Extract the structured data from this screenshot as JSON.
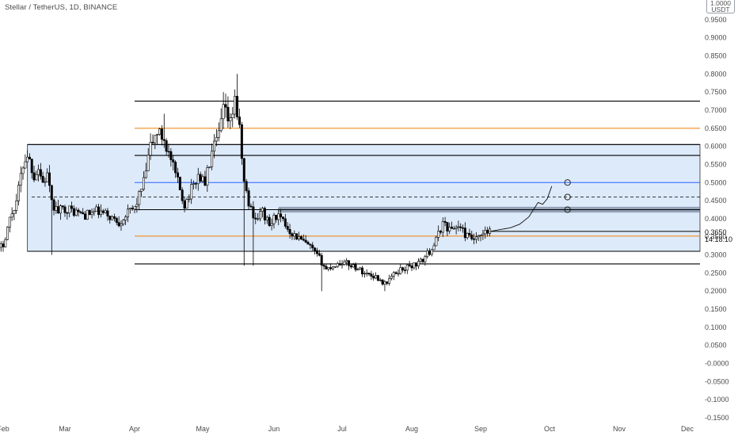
{
  "header": {
    "title": "Stellar / TetherUS, 1D, BINANCE",
    "currency_top": "1.0000",
    "currency_unit": "USDT"
  },
  "price_tag": {
    "price": "0.3650",
    "countdown": "14:18:10"
  },
  "chart_data": {
    "type": "candlestick",
    "title": "Stellar / TetherUS, 1D, BINANCE",
    "y_axis": {
      "ylim": [
        -0.16,
        1.0
      ],
      "tick_labels": [
        "1.0000",
        "0.9500",
        "0.9000",
        "0.8500",
        "0.8000",
        "0.7500",
        "0.7000",
        "0.6500",
        "0.6000",
        "0.5500",
        "0.5000",
        "0.4500",
        "0.4000",
        "0.3500",
        "0.3000",
        "0.2500",
        "0.2000",
        "0.1500",
        "0.1000",
        "0.0500",
        "-0.0000",
        "-0.0500",
        "-0.1000",
        "-0.1500"
      ],
      "tick_values": [
        1.0,
        0.95,
        0.9,
        0.85,
        0.8,
        0.75,
        0.7,
        0.65,
        0.6,
        0.55,
        0.5,
        0.45,
        0.4,
        0.35,
        0.3,
        0.25,
        0.2,
        0.15,
        0.1,
        0.05,
        0.0,
        -0.05,
        -0.1,
        -0.15
      ]
    },
    "x_axis": {
      "tick_labels": [
        "Feb",
        "Mar",
        "Apr",
        "May",
        "Jun",
        "Jul",
        "Aug",
        "Sep",
        "Oct",
        "Nov",
        "Dec"
      ],
      "tick_dates": [
        "2021-02-01",
        "2021-03-01",
        "2021-04-01",
        "2021-05-01",
        "2021-06-01",
        "2021-07-01",
        "2021-08-01",
        "2021-09-01",
        "2021-10-01",
        "2021-11-01",
        "2021-12-01"
      ]
    },
    "price_path": [
      [
        "2021-01-28",
        0.3
      ],
      [
        "2021-02-01",
        0.33
      ],
      [
        "2021-02-04",
        0.4
      ],
      [
        "2021-02-07",
        0.45
      ],
      [
        "2021-02-10",
        0.55
      ],
      [
        "2021-02-12",
        0.58
      ],
      [
        "2021-02-15",
        0.52
      ],
      [
        "2021-02-17",
        0.54
      ],
      [
        "2021-02-19",
        0.5
      ],
      [
        "2021-02-21",
        0.52
      ],
      [
        "2021-02-23",
        0.44
      ],
      [
        "2021-02-26",
        0.42
      ],
      [
        "2021-03-01",
        0.43
      ],
      [
        "2021-03-05",
        0.42
      ],
      [
        "2021-03-10",
        0.41
      ],
      [
        "2021-03-15",
        0.42
      ],
      [
        "2021-03-20",
        0.41
      ],
      [
        "2021-03-25",
        0.39
      ],
      [
        "2021-03-28",
        0.41
      ],
      [
        "2021-04-01",
        0.43
      ],
      [
        "2021-04-05",
        0.5
      ],
      [
        "2021-04-08",
        0.6
      ],
      [
        "2021-04-11",
        0.64
      ],
      [
        "2021-04-14",
        0.62
      ],
      [
        "2021-04-17",
        0.56
      ],
      [
        "2021-04-20",
        0.5
      ],
      [
        "2021-04-23",
        0.44
      ],
      [
        "2021-04-26",
        0.48
      ],
      [
        "2021-04-29",
        0.52
      ],
      [
        "2021-05-02",
        0.5
      ],
      [
        "2021-05-05",
        0.58
      ],
      [
        "2021-05-08",
        0.63
      ],
      [
        "2021-05-10",
        0.7
      ],
      [
        "2021-05-13",
        0.66
      ],
      [
        "2021-05-15",
        0.74
      ],
      [
        "2021-05-17",
        0.64
      ],
      [
        "2021-05-19",
        0.5
      ],
      [
        "2021-05-21",
        0.44
      ],
      [
        "2021-05-24",
        0.4
      ],
      [
        "2021-05-27",
        0.42
      ],
      [
        "2021-05-30",
        0.38
      ],
      [
        "2021-06-02",
        0.41
      ],
      [
        "2021-06-05",
        0.39
      ],
      [
        "2021-06-09",
        0.36
      ],
      [
        "2021-06-13",
        0.34
      ],
      [
        "2021-06-17",
        0.32
      ],
      [
        "2021-06-21",
        0.29
      ],
      [
        "2021-06-24",
        0.26
      ],
      [
        "2021-06-27",
        0.27
      ],
      [
        "2021-07-01",
        0.28
      ],
      [
        "2021-07-06",
        0.27
      ],
      [
        "2021-07-11",
        0.25
      ],
      [
        "2021-07-16",
        0.24
      ],
      [
        "2021-07-20",
        0.22
      ],
      [
        "2021-07-23",
        0.24
      ],
      [
        "2021-07-27",
        0.26
      ],
      [
        "2021-08-01",
        0.27
      ],
      [
        "2021-08-05",
        0.28
      ],
      [
        "2021-08-09",
        0.31
      ],
      [
        "2021-08-12",
        0.34
      ],
      [
        "2021-08-15",
        0.39
      ],
      [
        "2021-08-18",
        0.37
      ],
      [
        "2021-08-22",
        0.38
      ],
      [
        "2021-08-26",
        0.35
      ],
      [
        "2021-08-30",
        0.34
      ],
      [
        "2021-09-03",
        0.36
      ],
      [
        "2021-09-05",
        0.365
      ]
    ],
    "key_lows": [
      [
        "2021-02-23",
        0.3
      ],
      [
        "2021-05-19",
        0.27
      ],
      [
        "2021-05-23",
        0.27
      ],
      [
        "2021-06-22",
        0.2
      ],
      [
        "2021-07-20",
        0.2
      ]
    ],
    "key_highs": [
      [
        "2021-05-10",
        0.75
      ],
      [
        "2021-05-16",
        0.8
      ],
      [
        "2021-04-14",
        0.69
      ]
    ],
    "levels": [
      {
        "price": 0.725,
        "color": "#000000",
        "style": "solid"
      },
      {
        "price": 0.65,
        "color": "#f08c1e",
        "style": "solid"
      },
      {
        "price": 0.605,
        "color": "#000000",
        "style": "solid"
      },
      {
        "price": 0.575,
        "color": "#000000",
        "style": "solid"
      },
      {
        "price": 0.5,
        "color": "#2962ff",
        "style": "solid"
      },
      {
        "price": 0.46,
        "color": "#000000",
        "style": "dashed"
      },
      {
        "price": 0.425,
        "color": "#000000",
        "style": "solid"
      },
      {
        "price": 0.352,
        "color": "#f08c1e",
        "style": "solid"
      },
      {
        "price": 0.31,
        "color": "#000000",
        "style": "solid"
      },
      {
        "price": 0.275,
        "color": "#000000",
        "style": "solid"
      }
    ],
    "range_box": {
      "top": 0.605,
      "bottom": 0.31,
      "start": "2021-02-12",
      "color": "#bbd6f5"
    },
    "resistance_zone": {
      "top": 0.433,
      "bottom": 0.417,
      "start": "2021-06-03",
      "color": "#7a8aa0"
    },
    "projection_path": [
      [
        "2021-09-05",
        0.365
      ],
      [
        "2021-09-14",
        0.375
      ],
      [
        "2021-09-18",
        0.385
      ],
      [
        "2021-09-22",
        0.405
      ],
      [
        "2021-09-24",
        0.425
      ],
      [
        "2021-09-26",
        0.445
      ],
      [
        "2021-09-28",
        0.44
      ],
      [
        "2021-09-30",
        0.455
      ],
      [
        "2021-10-02",
        0.49
      ]
    ],
    "projection_targets": [
      [
        "2021-10-09",
        0.5
      ],
      [
        "2021-10-09",
        0.46
      ],
      [
        "2021-10-09",
        0.425
      ]
    ],
    "last_price": 0.365,
    "grid": false,
    "colors": {
      "up": "#ffffff",
      "down": "#000000",
      "wick": "#000000",
      "range_box": "#bbd6f5",
      "zone": "#7a8aa0",
      "orange": "#f08c1e",
      "blue": "#2962ff"
    }
  }
}
